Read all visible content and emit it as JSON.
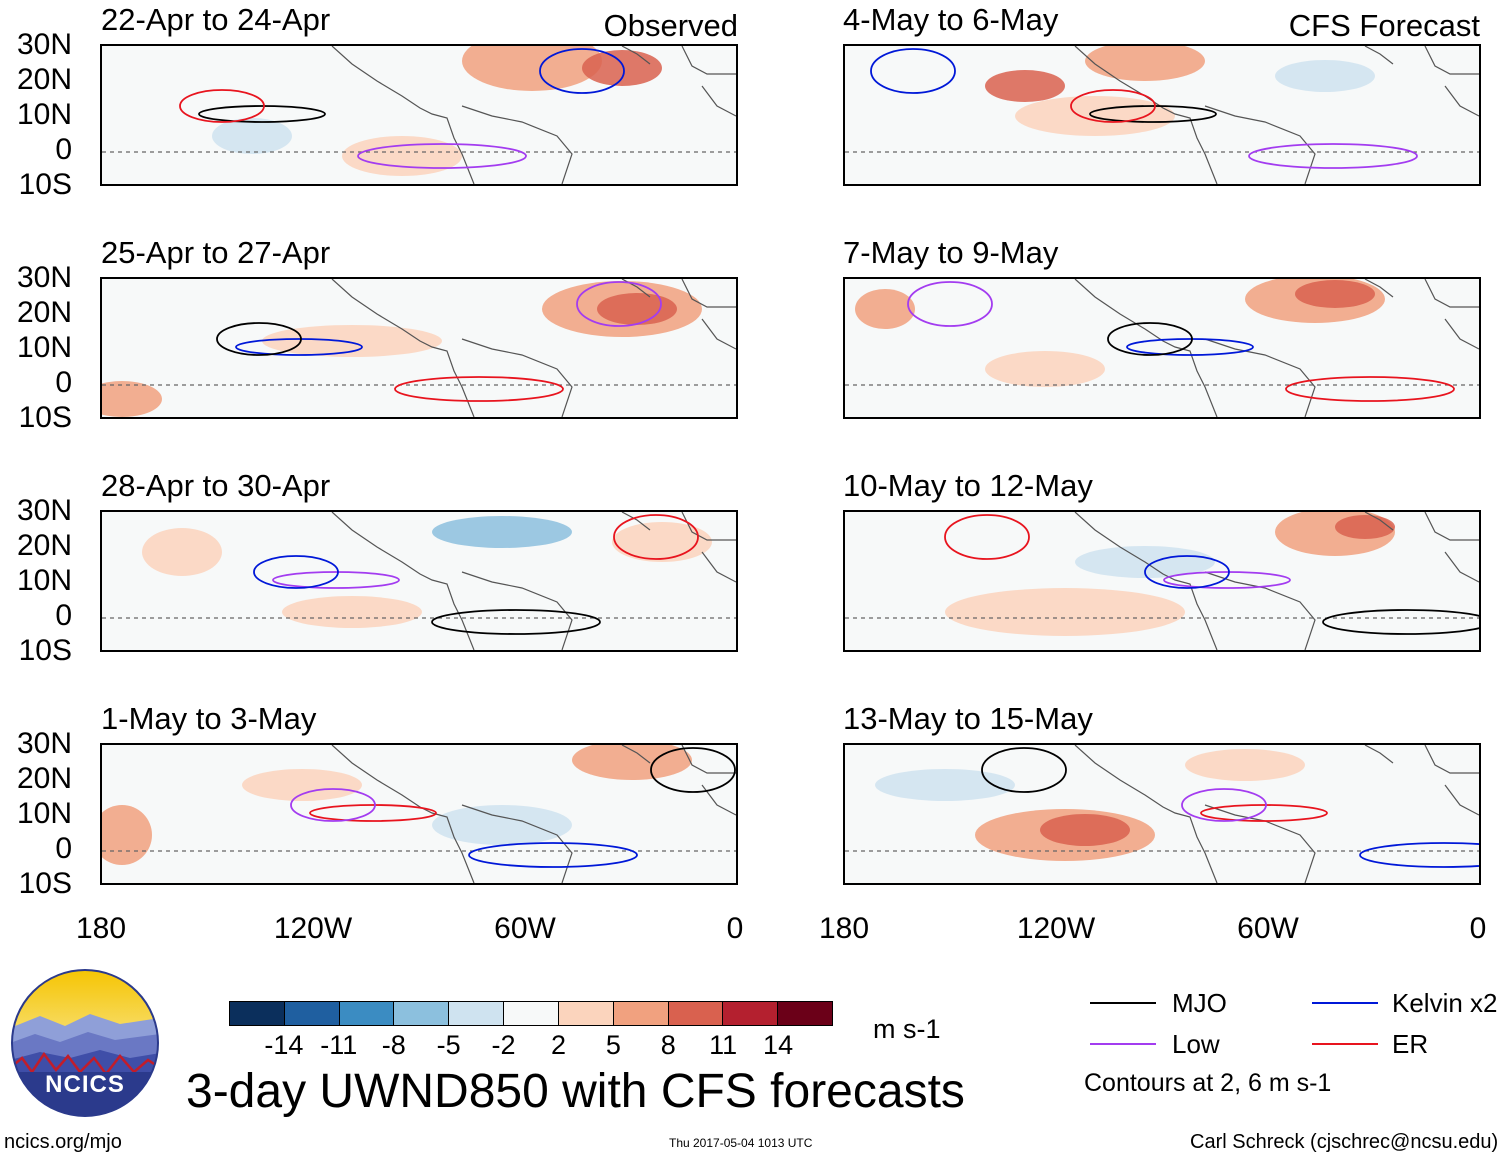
{
  "panels": [
    {
      "date_range": "22-Apr to 24-Apr",
      "label": "Observed"
    },
    {
      "date_range": "25-Apr to 27-Apr",
      "label": ""
    },
    {
      "date_range": "28-Apr to 30-Apr",
      "label": ""
    },
    {
      "date_range": "1-May to 3-May",
      "label": ""
    },
    {
      "date_range": "4-May to 6-May",
      "label": "CFS Forecast"
    },
    {
      "date_range": "7-May to 9-May",
      "label": ""
    },
    {
      "date_range": "10-May to 12-May",
      "label": ""
    },
    {
      "date_range": "13-May to 15-May",
      "label": ""
    }
  ],
  "axes": {
    "lat_labels": [
      "30N",
      "20N",
      "10N",
      "0",
      "10S"
    ],
    "lon_labels": [
      "180",
      "120W",
      "60W",
      "0"
    ]
  },
  "colorbar": {
    "ticks": [
      "-14",
      "-11",
      "-8",
      "-5",
      "-2",
      "2",
      "5",
      "8",
      "11",
      "14"
    ],
    "units": "m s-1",
    "colors": [
      "#0b2f5c",
      "#1f5fa0",
      "#3b8cc2",
      "#8cc0de",
      "#cfe3f0",
      "#f7f9f9",
      "#fbd4bd",
      "#f1a17f",
      "#d9614f",
      "#b4202f",
      "#6b0018"
    ]
  },
  "title": "3-day UWND850 with CFS forecasts",
  "legend": {
    "items": [
      {
        "label": "MJO",
        "color": "#000000"
      },
      {
        "label": "Kelvin x2",
        "color": "#0018d8"
      },
      {
        "label": "Low",
        "color": "#a33cf0"
      },
      {
        "label": "ER",
        "color": "#e8141e"
      }
    ],
    "note": "Contours at 2, 6 m s-1"
  },
  "logo": {
    "text": "NCICS"
  },
  "footer": {
    "url": "ncics.org/mjo",
    "timestamp": "Thu 2017-05-04 1013 UTC",
    "credit": "Carl Schreck (cjschrec@ncsu.edu)"
  }
}
